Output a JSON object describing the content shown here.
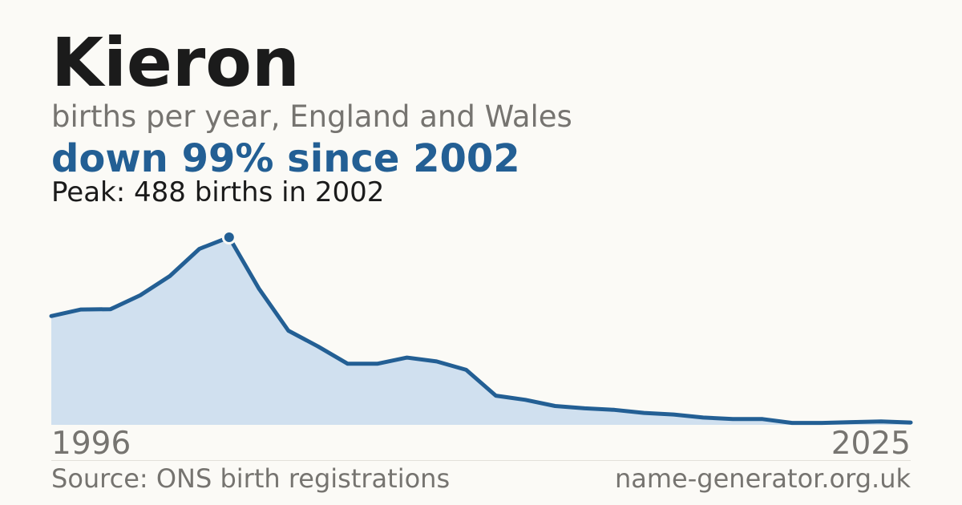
{
  "title": "Kieron",
  "subtitle": "births per year, England and Wales",
  "headline": "down 99% since 2002",
  "peak_note": "Peak: 488 births in 2002",
  "source": "Source: ONS birth registrations",
  "site": "name-generator.org.uk",
  "colors": {
    "line": "#235f94",
    "area": "#d0e0ef",
    "headline": "#235f94",
    "background": "#fbfaf6"
  },
  "chart_data": {
    "type": "area",
    "title": "Kieron",
    "subtitle": "births per year, England and Wales",
    "x_tick_labels": [
      "1996",
      "2025"
    ],
    "x": [
      1996,
      1997,
      1998,
      1999,
      2000,
      2001,
      2002,
      2003,
      2004,
      2005,
      2006,
      2007,
      2008,
      2009,
      2010,
      2011,
      2012,
      2013,
      2014,
      2015,
      2016,
      2017,
      2018,
      2019,
      2020,
      2021,
      2022,
      2023,
      2024,
      2025
    ],
    "series": [
      {
        "values": [
          283,
          300,
          301,
          337,
          387,
          458,
          488,
          355,
          245,
          204,
          159,
          159,
          175,
          165,
          143,
          76,
          65,
          49,
          43,
          39,
          31,
          27,
          19,
          15,
          15,
          5,
          5,
          7,
          9,
          6
        ]
      }
    ],
    "peak": {
      "x": 2002,
      "y": 488
    },
    "ylim": [
      0,
      488
    ],
    "grid": false,
    "legend": "none"
  }
}
